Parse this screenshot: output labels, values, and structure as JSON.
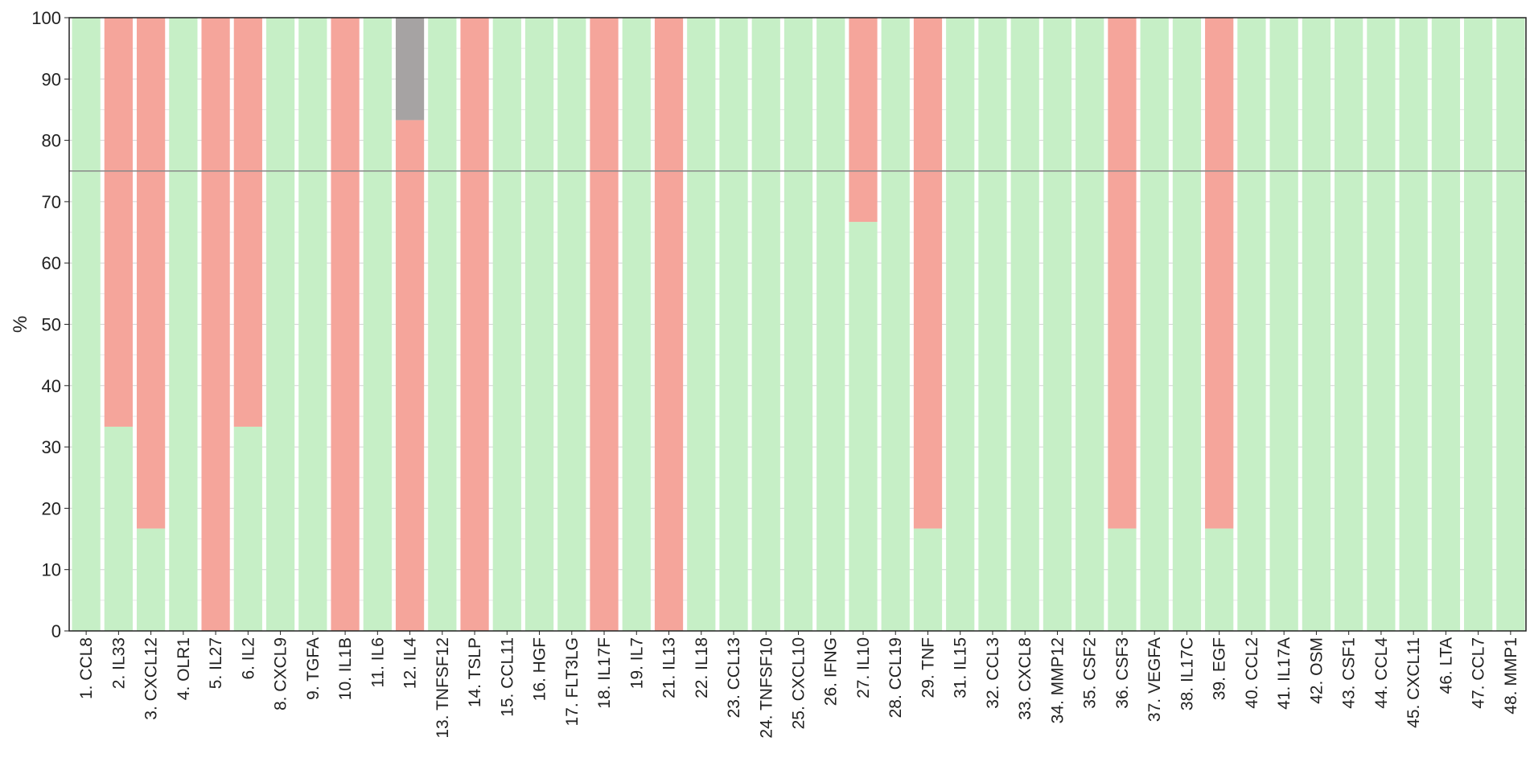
{
  "chart_data": {
    "type": "bar",
    "stacked": true,
    "percent_stacked": true,
    "ylabel": "%",
    "xlabel": "",
    "title": "",
    "ylim": [
      0,
      100
    ],
    "yticks": [
      0,
      10,
      20,
      30,
      40,
      50,
      60,
      70,
      80,
      90,
      100
    ],
    "grid": true,
    "reference_line": 75,
    "legend": "none",
    "colors": {
      "green": "#c6efc6",
      "red": "#f5a59b",
      "gray": "#a6a3a3",
      "reference_line": "#888888",
      "grid": "#d4d4d4",
      "axis": "#222222"
    },
    "categories": [
      "1. CCL8",
      "2. IL33",
      "3. CXCL12",
      "4. OLR1",
      "5. IL27",
      "6. IL2",
      "8. CXCL9",
      "9. TGFA",
      "10. IL1B",
      "11. IL6",
      "12. IL4",
      "13. TNFSF12",
      "14. TSLP",
      "15. CCL11",
      "16. HGF",
      "17. FLT3LG",
      "18. IL17F",
      "19. IL7",
      "21. IL13",
      "22. IL18",
      "23. CCL13",
      "24. TNFSF10",
      "25. CXCL10",
      "26. IFNG",
      "27. IL10",
      "28. CCL19",
      "29. TNF",
      "31. IL15",
      "32. CCL3",
      "33. CXCL8",
      "34. MMP12",
      "35. CSF2",
      "36. CSF3",
      "37. VEGFA",
      "38. IL17C",
      "39. EGF",
      "40. CCL2",
      "41. IL17A",
      "42. OSM",
      "43. CSF1",
      "44. CCL4",
      "45. CXCL11",
      "46. LTA",
      "47. CCL7",
      "48. MMP1"
    ],
    "series": [
      {
        "color": "#c6efc6",
        "values": [
          100,
          33.3,
          16.7,
          100,
          0,
          33.3,
          100,
          100,
          0,
          100,
          0,
          100,
          0,
          100,
          100,
          100,
          0,
          100,
          0,
          100,
          100,
          100,
          100,
          100,
          66.7,
          100,
          16.7,
          100,
          100,
          100,
          100,
          100,
          16.7,
          100,
          100,
          16.7,
          100,
          100,
          100,
          100,
          100,
          100,
          100,
          100,
          100
        ]
      },
      {
        "color": "#f5a59b",
        "values": [
          0,
          66.7,
          83.3,
          0,
          100,
          66.7,
          0,
          0,
          100,
          0,
          83.3,
          0,
          100,
          0,
          0,
          0,
          100,
          0,
          100,
          0,
          0,
          0,
          0,
          0,
          33.3,
          0,
          83.3,
          0,
          0,
          0,
          0,
          0,
          83.3,
          0,
          0,
          83.3,
          0,
          0,
          0,
          0,
          0,
          0,
          0,
          0,
          0
        ]
      },
      {
        "color": "#a6a3a3",
        "values": [
          0,
          0,
          0,
          0,
          0,
          0,
          0,
          0,
          0,
          0,
          16.7,
          0,
          0,
          0,
          0,
          0,
          0,
          0,
          0,
          0,
          0,
          0,
          0,
          0,
          0,
          0,
          0,
          0,
          0,
          0,
          0,
          0,
          0,
          0,
          0,
          0,
          0,
          0,
          0,
          0,
          0,
          0,
          0,
          0,
          0
        ]
      }
    ]
  }
}
